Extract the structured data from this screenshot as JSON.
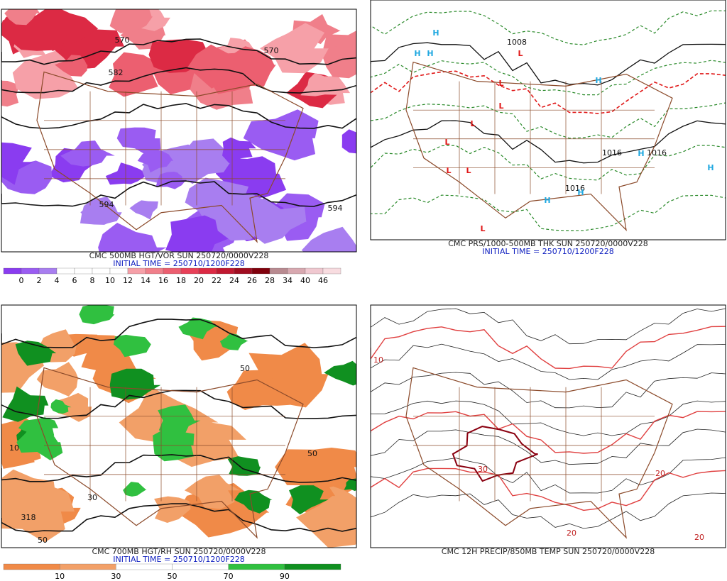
{
  "panels": [
    {
      "caption": "CMC 500MB HGT/VOR SUN 250720/0000V228",
      "initial_time": "INITIAL TIME = 250710/1200F228",
      "contour_labels": [
        "570",
        "570",
        "582",
        "594",
        "594"
      ],
      "colorbar": {
        "labels": [
          "0",
          "2",
          "4",
          "6",
          "8",
          "10",
          "12",
          "14",
          "16",
          "18",
          "20",
          "22",
          "24",
          "26",
          "28",
          "34",
          "40",
          "46"
        ],
        "colors": [
          "#8a3cf0",
          "#9a5cf2",
          "#a87ef0",
          "#ffffff",
          "#ffffff",
          "#ffffff",
          "#ffffff",
          "#f6a0a8",
          "#f07f8a",
          "#ec5f70",
          "#e84058",
          "#dc2a44",
          "#c01830",
          "#a00c20",
          "#80000c",
          "#b88a90",
          "#d8a8b0",
          "#f0c8d0",
          "#f8dce0"
        ]
      }
    },
    {
      "caption": "CMC PRS/1000-500MB THK SUN 250720/0000V228",
      "initial_time": "INITIAL TIME = 250710/1200F228",
      "highs": [
        "H",
        "H",
        "H",
        "H",
        "H",
        "H",
        "H",
        "H"
      ],
      "lows": [
        "L",
        "L",
        "L",
        "L",
        "L",
        "L",
        "L",
        "L"
      ],
      "contour_labels": [
        "1008",
        "1016",
        "1016",
        "1016"
      ],
      "high_color": "#20a8e0",
      "low_color": "#e01818"
    },
    {
      "caption": "CMC 700MB HGT/RH SUN 250720/0000V228",
      "initial_time": "INITIAL TIME = 250710/1200F228",
      "contour_labels": [
        "10",
        "50",
        "50",
        "30",
        "318",
        "50"
      ],
      "colorbar": {
        "labels": [
          "10",
          "30",
          "50",
          "70",
          "90"
        ],
        "colors": [
          "#f08a48",
          "#f2a068",
          "#ffffff",
          "#ffffff",
          "#30c040",
          "#109020"
        ]
      }
    },
    {
      "caption": "CMC 12H PRECIP/850MB TEMP SUN 250720/0000V228",
      "contour_labels": [
        "30",
        "20",
        "20",
        "10",
        "20"
      ]
    }
  ]
}
